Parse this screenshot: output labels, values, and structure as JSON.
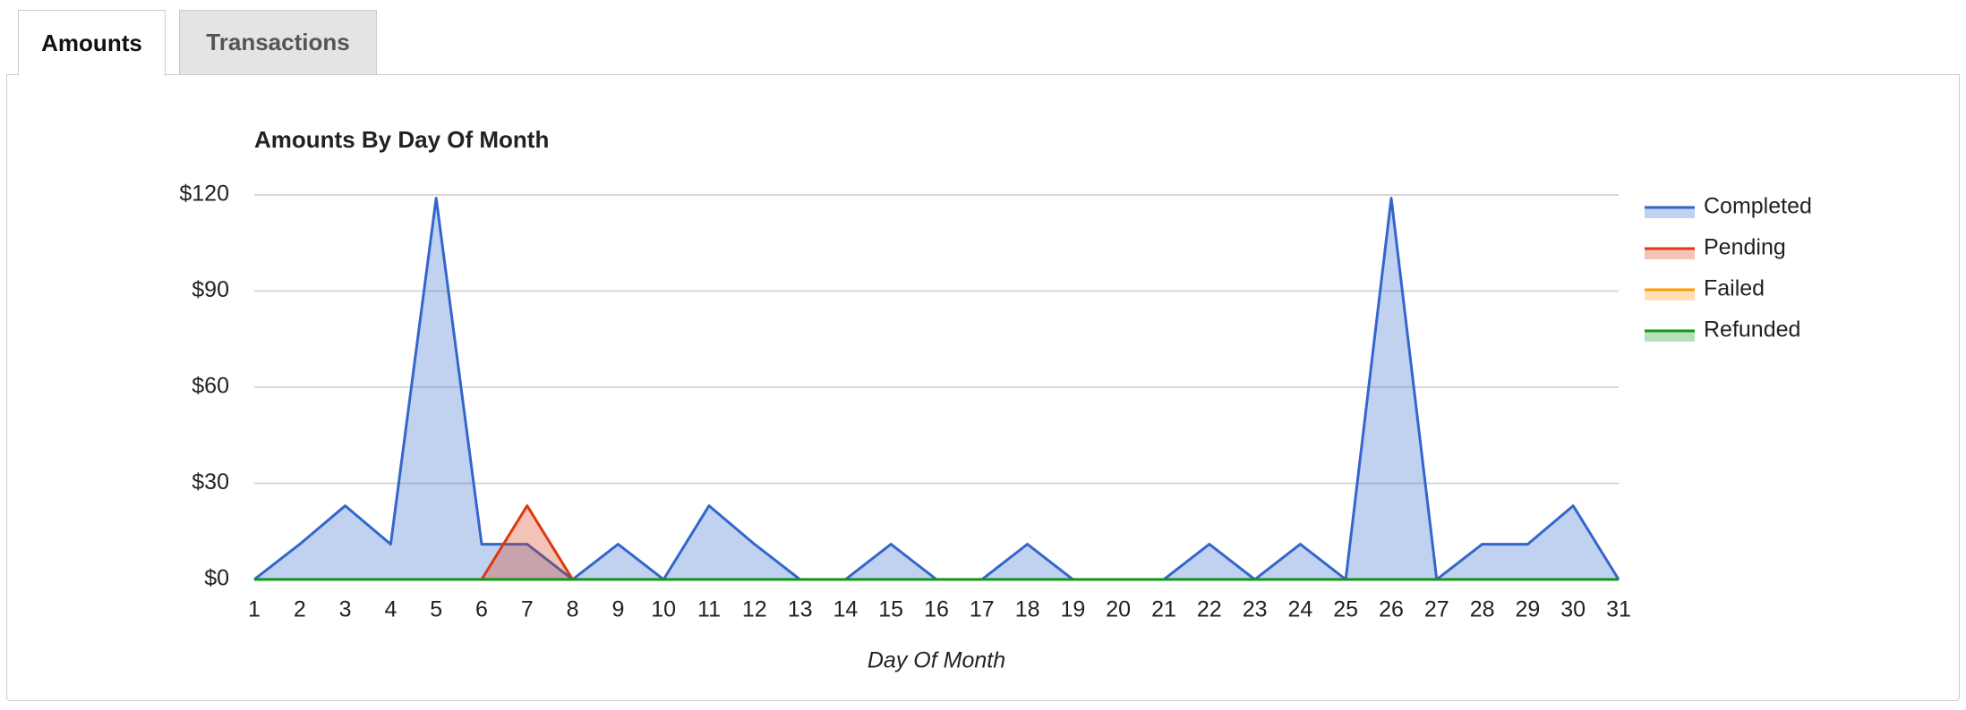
{
  "tabs": [
    "Amounts",
    "Transactions"
  ],
  "chart_data": {
    "type": "area",
    "title": "Amounts By Day Of Month",
    "x_label": "Day Of Month",
    "x": [
      1,
      2,
      3,
      4,
      5,
      6,
      7,
      8,
      9,
      10,
      11,
      12,
      13,
      14,
      15,
      16,
      17,
      18,
      19,
      20,
      21,
      22,
      23,
      24,
      25,
      26,
      27,
      28,
      29,
      30,
      31
    ],
    "xlim": [
      1,
      31
    ],
    "ylim": [
      0,
      120
    ],
    "yticks": [
      {
        "value": 0,
        "label": "$0"
      },
      {
        "value": 30,
        "label": "$30"
      },
      {
        "value": 60,
        "label": "$60"
      },
      {
        "value": 90,
        "label": "$90"
      },
      {
        "value": 120,
        "label": "$120"
      }
    ],
    "grid": true,
    "legend": "right",
    "series": [
      {
        "name": "Completed",
        "color": "#3366cc",
        "values": [
          0,
          11,
          23,
          11,
          119,
          11,
          11,
          0,
          11,
          0,
          23,
          11,
          0,
          0,
          11,
          0,
          0,
          11,
          0,
          0,
          0,
          11,
          0,
          11,
          0,
          119,
          0,
          11,
          11,
          23,
          0
        ]
      },
      {
        "name": "Pending",
        "color": "#dc3912",
        "values": [
          0,
          0,
          0,
          0,
          0,
          0,
          23,
          0,
          0,
          0,
          0,
          0,
          0,
          0,
          0,
          0,
          0,
          0,
          0,
          0,
          0,
          0,
          0,
          0,
          0,
          0,
          0,
          0,
          0,
          0,
          0
        ]
      },
      {
        "name": "Failed",
        "color": "#ff9900",
        "values": [
          0,
          0,
          0,
          0,
          0,
          0,
          0,
          0,
          0,
          0,
          0,
          0,
          0,
          0,
          0,
          0,
          0,
          0,
          0,
          0,
          0,
          0,
          0,
          0,
          0,
          0,
          0,
          0,
          0,
          0,
          0
        ]
      },
      {
        "name": "Refunded",
        "color": "#109618",
        "values": [
          0,
          0,
          0,
          0,
          0,
          0,
          0,
          0,
          0,
          0,
          0,
          0,
          0,
          0,
          0,
          0,
          0,
          0,
          0,
          0,
          0,
          0,
          0,
          0,
          0,
          0,
          0,
          0,
          0,
          0,
          0
        ]
      }
    ]
  }
}
